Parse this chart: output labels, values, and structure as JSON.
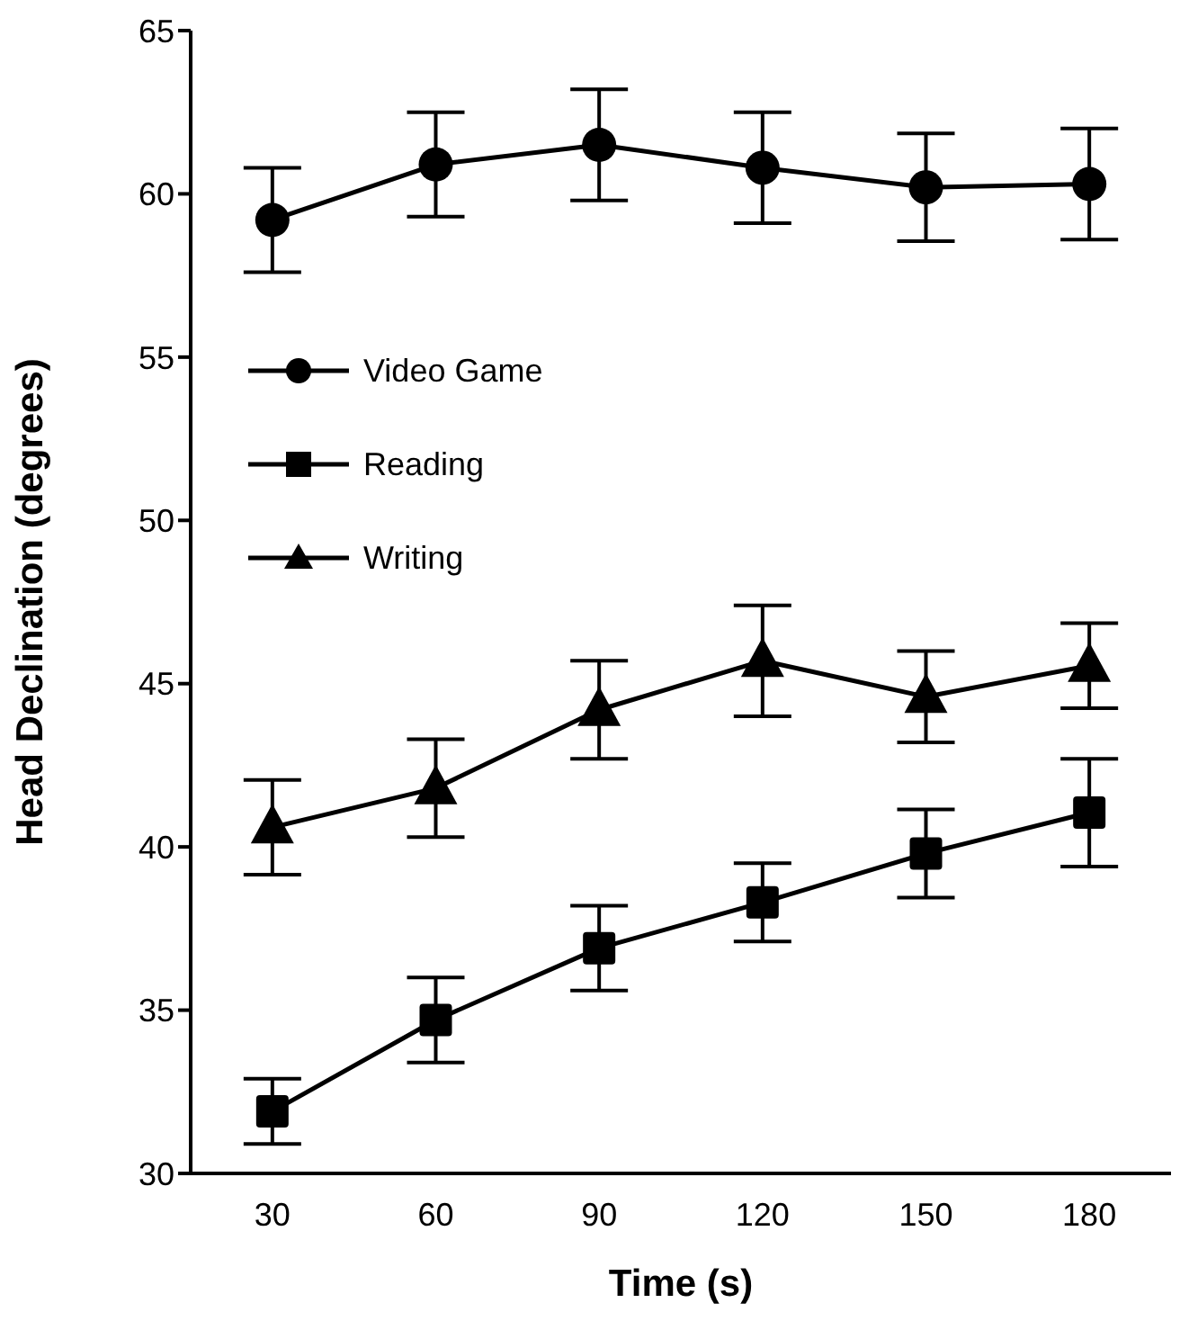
{
  "chart_data": {
    "type": "line",
    "xlabel": "Time (s)",
    "ylabel": "Head Declination (degrees)",
    "categories": [
      "30",
      "60",
      "90",
      "120",
      "150",
      "180"
    ],
    "ylim": [
      30,
      65
    ],
    "yticks": [
      30,
      35,
      40,
      45,
      50,
      55,
      60,
      65
    ],
    "grid": false,
    "legend": "top left",
    "line_style": "solid",
    "series": [
      {
        "name": "Video Game",
        "color": "#000000",
        "marker": "circle",
        "values": [
          59.2,
          60.9,
          61.5,
          60.8,
          60.2,
          60.3
        ],
        "errors": [
          1.6,
          1.6,
          1.7,
          1.7,
          1.65,
          1.7
        ]
      },
      {
        "name": "Reading",
        "color": "#000000",
        "marker": "square",
        "values": [
          31.9,
          34.7,
          36.9,
          38.3,
          39.8,
          41.05
        ],
        "errors": [
          1.0,
          1.3,
          1.3,
          1.2,
          1.35,
          1.65
        ]
      },
      {
        "name": "Writing",
        "color": "#000000",
        "marker": "triangle",
        "values": [
          40.6,
          41.8,
          44.2,
          45.7,
          44.6,
          45.55
        ],
        "errors": [
          1.45,
          1.5,
          1.5,
          1.7,
          1.4,
          1.3
        ]
      }
    ]
  }
}
